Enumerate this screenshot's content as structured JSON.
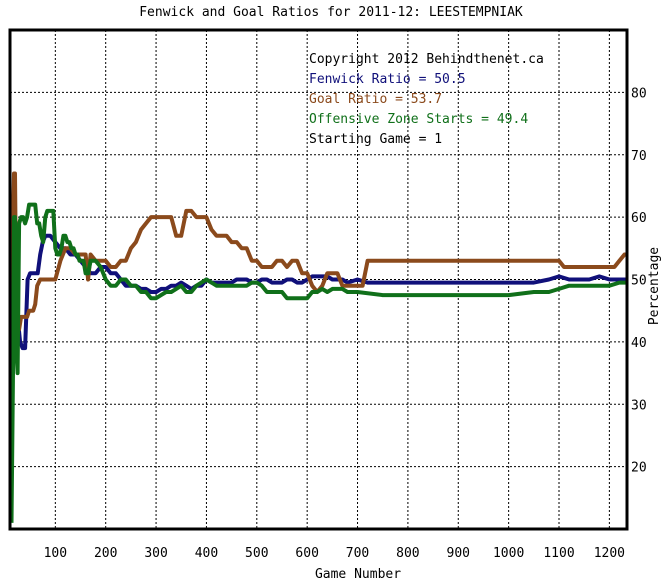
{
  "chart_data": {
    "type": "line",
    "title": "Fenwick and Goal Ratios for 2011-12: LEESTEMPNIAK",
    "xlabel": "Game Number",
    "ylabel": "Percentage",
    "xlim": [
      10,
      1235
    ],
    "ylim": [
      10,
      90
    ],
    "x_ticks": [
      100,
      200,
      300,
      400,
      500,
      600,
      700,
      800,
      900,
      1000,
      1100,
      1200
    ],
    "y_ticks": [
      20,
      30,
      40,
      50,
      60,
      70,
      80
    ],
    "grid": true,
    "legend_position": "top-right",
    "annotations": [
      "Copyright 2012 Behindthenet.ca",
      "Starting Game = 1"
    ],
    "series": [
      {
        "name": "Fenwick Ratio = 50.5",
        "color": "#10107a",
        "points": [
          [
            15,
            55
          ],
          [
            20,
            46
          ],
          [
            25,
            44
          ],
          [
            30,
            40
          ],
          [
            35,
            39
          ],
          [
            40,
            39
          ],
          [
            45,
            50
          ],
          [
            50,
            51
          ],
          [
            55,
            51
          ],
          [
            60,
            51
          ],
          [
            65,
            51
          ],
          [
            70,
            54
          ],
          [
            75,
            56
          ],
          [
            80,
            57
          ],
          [
            90,
            57
          ],
          [
            100,
            56
          ],
          [
            110,
            55
          ],
          [
            120,
            55
          ],
          [
            130,
            54
          ],
          [
            140,
            54
          ],
          [
            150,
            53
          ],
          [
            160,
            52
          ],
          [
            170,
            51
          ],
          [
            180,
            51
          ],
          [
            190,
            52
          ],
          [
            200,
            52
          ],
          [
            210,
            51
          ],
          [
            220,
            51
          ],
          [
            230,
            50
          ],
          [
            240,
            49
          ],
          [
            250,
            49
          ],
          [
            260,
            49
          ],
          [
            270,
            48.5
          ],
          [
            280,
            48.5
          ],
          [
            290,
            48
          ],
          [
            300,
            48
          ],
          [
            310,
            48.5
          ],
          [
            320,
            48.5
          ],
          [
            330,
            49
          ],
          [
            340,
            49
          ],
          [
            350,
            49.5
          ],
          [
            360,
            49
          ],
          [
            370,
            48.5
          ],
          [
            380,
            49
          ],
          [
            390,
            49
          ],
          [
            400,
            50
          ],
          [
            410,
            49.5
          ],
          [
            420,
            49.5
          ],
          [
            430,
            49.5
          ],
          [
            440,
            49.5
          ],
          [
            450,
            49.5
          ],
          [
            460,
            50
          ],
          [
            470,
            50
          ],
          [
            480,
            50
          ],
          [
            490,
            49.5
          ],
          [
            500,
            49.5
          ],
          [
            510,
            50
          ],
          [
            520,
            50
          ],
          [
            530,
            49.5
          ],
          [
            540,
            49.5
          ],
          [
            550,
            49.5
          ],
          [
            560,
            50
          ],
          [
            570,
            50
          ],
          [
            580,
            49.5
          ],
          [
            590,
            49.5
          ],
          [
            600,
            50
          ],
          [
            610,
            50.5
          ],
          [
            620,
            50.5
          ],
          [
            630,
            50.5
          ],
          [
            640,
            50.5
          ],
          [
            650,
            50
          ],
          [
            660,
            50
          ],
          [
            670,
            50
          ],
          [
            680,
            49.5
          ],
          [
            700,
            50
          ],
          [
            720,
            49.5
          ],
          [
            740,
            49.5
          ],
          [
            760,
            49.5
          ],
          [
            780,
            49.5
          ],
          [
            800,
            49.5
          ],
          [
            850,
            49.5
          ],
          [
            900,
            49.5
          ],
          [
            950,
            49.5
          ],
          [
            1000,
            49.5
          ],
          [
            1050,
            49.5
          ],
          [
            1080,
            50
          ],
          [
            1100,
            50.5
          ],
          [
            1120,
            50
          ],
          [
            1140,
            50
          ],
          [
            1160,
            50
          ],
          [
            1180,
            50.5
          ],
          [
            1200,
            50
          ],
          [
            1220,
            50
          ],
          [
            1235,
            50
          ]
        ]
      },
      {
        "name": "Goal Ratio = 53.7",
        "color": "#8b4a1c",
        "points": [
          [
            14,
            34
          ],
          [
            16,
            60
          ],
          [
            18,
            67
          ],
          [
            20,
            67
          ],
          [
            22,
            50
          ],
          [
            25,
            42
          ],
          [
            28,
            42
          ],
          [
            32,
            44
          ],
          [
            36,
            44
          ],
          [
            40,
            44
          ],
          [
            44,
            44
          ],
          [
            48,
            45
          ],
          [
            52,
            45
          ],
          [
            56,
            45
          ],
          [
            60,
            46
          ],
          [
            64,
            49
          ],
          [
            70,
            50
          ],
          [
            80,
            50
          ],
          [
            90,
            50
          ],
          [
            100,
            50
          ],
          [
            110,
            53
          ],
          [
            120,
            55
          ],
          [
            130,
            55
          ],
          [
            140,
            54
          ],
          [
            150,
            54
          ],
          [
            160,
            54
          ],
          [
            165,
            50
          ],
          [
            170,
            54
          ],
          [
            180,
            53
          ],
          [
            190,
            53
          ],
          [
            200,
            53
          ],
          [
            210,
            52
          ],
          [
            220,
            52
          ],
          [
            230,
            53
          ],
          [
            240,
            53
          ],
          [
            250,
            55
          ],
          [
            260,
            56
          ],
          [
            270,
            58
          ],
          [
            280,
            59
          ],
          [
            290,
            60
          ],
          [
            300,
            60
          ],
          [
            310,
            60
          ],
          [
            320,
            60
          ],
          [
            330,
            60
          ],
          [
            340,
            57
          ],
          [
            350,
            57
          ],
          [
            360,
            61
          ],
          [
            370,
            61
          ],
          [
            380,
            60
          ],
          [
            390,
            60
          ],
          [
            400,
            60
          ],
          [
            410,
            58
          ],
          [
            420,
            57
          ],
          [
            430,
            57
          ],
          [
            440,
            57
          ],
          [
            450,
            56
          ],
          [
            460,
            56
          ],
          [
            470,
            55
          ],
          [
            480,
            55
          ],
          [
            490,
            53
          ],
          [
            500,
            53
          ],
          [
            510,
            52
          ],
          [
            520,
            52
          ],
          [
            530,
            52
          ],
          [
            540,
            53
          ],
          [
            550,
            53
          ],
          [
            560,
            52
          ],
          [
            570,
            53
          ],
          [
            580,
            53
          ],
          [
            590,
            51
          ],
          [
            600,
            51
          ],
          [
            610,
            49
          ],
          [
            620,
            48
          ],
          [
            630,
            49
          ],
          [
            640,
            51
          ],
          [
            650,
            51
          ],
          [
            660,
            51
          ],
          [
            670,
            49
          ],
          [
            680,
            49
          ],
          [
            690,
            49
          ],
          [
            700,
            49
          ],
          [
            710,
            49
          ],
          [
            720,
            53
          ],
          [
            730,
            53
          ],
          [
            760,
            53
          ],
          [
            800,
            53
          ],
          [
            850,
            53
          ],
          [
            900,
            53
          ],
          [
            950,
            53
          ],
          [
            1000,
            53
          ],
          [
            1050,
            53
          ],
          [
            1100,
            53
          ],
          [
            1110,
            52
          ],
          [
            1150,
            52
          ],
          [
            1190,
            52
          ],
          [
            1200,
            52
          ],
          [
            1210,
            52
          ],
          [
            1220,
            53
          ],
          [
            1230,
            54
          ],
          [
            1235,
            54
          ]
        ]
      },
      {
        "name": "Offensive Zone Starts = 49.4",
        "color": "#10701a",
        "points": [
          [
            13,
            11
          ],
          [
            16,
            35
          ],
          [
            18,
            60
          ],
          [
            20,
            60
          ],
          [
            22,
            40
          ],
          [
            25,
            35
          ],
          [
            28,
            59
          ],
          [
            32,
            60
          ],
          [
            36,
            60
          ],
          [
            40,
            59
          ],
          [
            44,
            60
          ],
          [
            48,
            62
          ],
          [
            52,
            62
          ],
          [
            56,
            62
          ],
          [
            60,
            62
          ],
          [
            64,
            59
          ],
          [
            68,
            59
          ],
          [
            72,
            57
          ],
          [
            76,
            56
          ],
          [
            80,
            60
          ],
          [
            84,
            61
          ],
          [
            88,
            61
          ],
          [
            92,
            61
          ],
          [
            96,
            61
          ],
          [
            100,
            55
          ],
          [
            104,
            54
          ],
          [
            108,
            54
          ],
          [
            112,
            55
          ],
          [
            116,
            57
          ],
          [
            120,
            57
          ],
          [
            124,
            56
          ],
          [
            128,
            56
          ],
          [
            132,
            55
          ],
          [
            136,
            55
          ],
          [
            140,
            54
          ],
          [
            144,
            54
          ],
          [
            148,
            53
          ],
          [
            152,
            53
          ],
          [
            156,
            53
          ],
          [
            160,
            51
          ],
          [
            165,
            51
          ],
          [
            170,
            53
          ],
          [
            180,
            53
          ],
          [
            190,
            52
          ],
          [
            200,
            50
          ],
          [
            210,
            49
          ],
          [
            220,
            49
          ],
          [
            230,
            50
          ],
          [
            240,
            50
          ],
          [
            250,
            49
          ],
          [
            260,
            49
          ],
          [
            270,
            48
          ],
          [
            280,
            48
          ],
          [
            290,
            47
          ],
          [
            300,
            47
          ],
          [
            310,
            47.5
          ],
          [
            320,
            48
          ],
          [
            330,
            48
          ],
          [
            340,
            48.5
          ],
          [
            350,
            49
          ],
          [
            360,
            48
          ],
          [
            370,
            48
          ],
          [
            380,
            49
          ],
          [
            390,
            49.5
          ],
          [
            400,
            50
          ],
          [
            410,
            49.5
          ],
          [
            420,
            49
          ],
          [
            430,
            49
          ],
          [
            440,
            49
          ],
          [
            450,
            49
          ],
          [
            460,
            49
          ],
          [
            470,
            49
          ],
          [
            480,
            49
          ],
          [
            490,
            49.5
          ],
          [
            500,
            49.5
          ],
          [
            510,
            49
          ],
          [
            520,
            48
          ],
          [
            530,
            48
          ],
          [
            540,
            48
          ],
          [
            550,
            48
          ],
          [
            560,
            47
          ],
          [
            570,
            47
          ],
          [
            580,
            47
          ],
          [
            590,
            47
          ],
          [
            600,
            47
          ],
          [
            610,
            48
          ],
          [
            620,
            48
          ],
          [
            630,
            48.5
          ],
          [
            640,
            48
          ],
          [
            650,
            48.5
          ],
          [
            660,
            48.5
          ],
          [
            670,
            48.5
          ],
          [
            680,
            48
          ],
          [
            700,
            48
          ],
          [
            750,
            47.5
          ],
          [
            800,
            47.5
          ],
          [
            850,
            47.5
          ],
          [
            900,
            47.5
          ],
          [
            950,
            47.5
          ],
          [
            1000,
            47.5
          ],
          [
            1050,
            48
          ],
          [
            1080,
            48
          ],
          [
            1100,
            48.5
          ],
          [
            1120,
            49
          ],
          [
            1140,
            49
          ],
          [
            1160,
            49
          ],
          [
            1180,
            49
          ],
          [
            1200,
            49
          ],
          [
            1220,
            49.5
          ],
          [
            1235,
            49.5
          ]
        ]
      }
    ]
  }
}
